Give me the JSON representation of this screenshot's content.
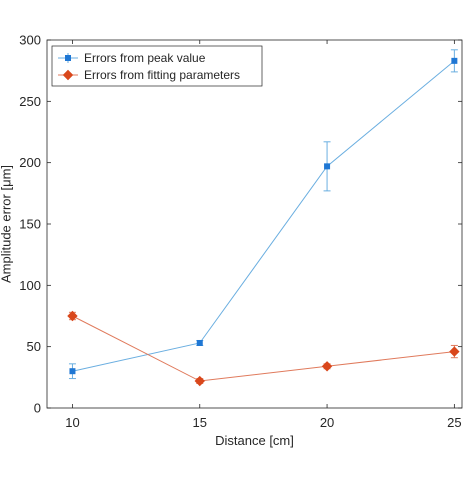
{
  "chart_data": {
    "type": "line",
    "title": "",
    "xlabel": "Distance [cm]",
    "ylabel": "Amplitude error [μm]",
    "x": [
      10,
      15,
      20,
      25
    ],
    "xlim": [
      9,
      25.3
    ],
    "ylim": [
      0,
      300
    ],
    "xticks": [
      "10",
      "15",
      "20",
      "25"
    ],
    "yticks": [
      "0",
      "50",
      "100",
      "150",
      "200",
      "250",
      "300"
    ],
    "grid": false,
    "legend_position": "top-left",
    "series": [
      {
        "name": "Errors from peak value",
        "values": [
          30,
          53,
          197,
          283
        ],
        "errors": [
          6,
          2,
          20,
          9
        ],
        "color": "#6aaee0",
        "marker_color": "#1f77d4",
        "marker": "square"
      },
      {
        "name": "Errors from fitting parameters",
        "values": [
          75,
          22,
          34,
          46
        ],
        "errors": [
          3,
          2,
          2,
          5
        ],
        "color": "#e07a5c",
        "marker_color": "#d9471b",
        "marker": "diamond"
      }
    ]
  }
}
